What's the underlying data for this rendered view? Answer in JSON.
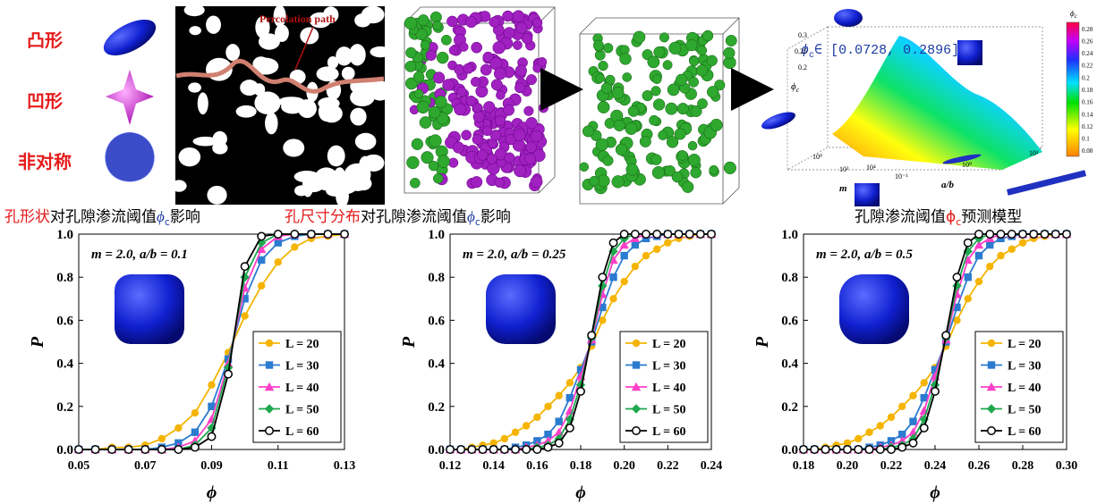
{
  "figure": {
    "shape_labels": [
      "凸形",
      "凹形",
      "非对称"
    ],
    "percolation_label": "Percolation path",
    "caption_left": [
      "孔形状",
      "对孔隙渗流阈值",
      "ϕ",
      "c",
      "影响"
    ],
    "caption_mid": [
      "孔尺寸分布",
      "对孔隙渗流阈值",
      "ϕ",
      "c",
      "影响"
    ],
    "caption_right": [
      "孔隙渗流阈值",
      "ϕ",
      "c",
      "预测模型"
    ],
    "model": {
      "interval": [
        "ϕ",
        "c",
        "∈ [0.0728, 0.2896]"
      ],
      "z_label": "ϕ",
      "z_label_sub": "c",
      "m_label": "m",
      "ab_label": "a/b",
      "zlim": [
        0,
        0.3
      ],
      "zticks": [
        0.2,
        0.25,
        0.3
      ],
      "m_ticks": [
        "10⁰",
        "10²",
        "10⁴"
      ],
      "ab_ticks": [
        "10⁻¹",
        "10⁰",
        "10¹"
      ],
      "colorbar_title": "ϕ",
      "colorbar_title_sub": "c",
      "clim": [
        0.07,
        0.29
      ],
      "cticks": [
        0.08,
        0.1,
        0.12,
        0.14,
        0.16,
        0.18,
        0.2,
        0.22,
        0.24,
        0.26,
        0.28
      ]
    }
  },
  "chart_data": [
    {
      "type": "line",
      "annotation": "m = 2.0, a/b = 0.1",
      "x_label": "ϕ",
      "y_label": "P",
      "legend": "lower right",
      "x": [
        0.05,
        0.055,
        0.06,
        0.065,
        0.07,
        0.075,
        0.08,
        0.085,
        0.09,
        0.095,
        0.1,
        0.105,
        0.11,
        0.115,
        0.12,
        0.125,
        0.13
      ],
      "xlim": [
        0.05,
        0.13
      ],
      "xticks": [
        0.05,
        0.07,
        0.09,
        0.11,
        0.13
      ],
      "ylim": [
        0,
        1
      ],
      "yticks": [
        {
          "value": 0,
          "label": "0.0"
        },
        0.2,
        0.4,
        0.6,
        0.8,
        {
          "value": 1,
          "label": "1.0"
        }
      ],
      "series": [
        {
          "name": "L = 20",
          "color": "#f5b400",
          "marker": "circle",
          "values": [
            0,
            0,
            0.01,
            0.01,
            0.02,
            0.05,
            0.1,
            0.17,
            0.3,
            0.45,
            0.62,
            0.76,
            0.87,
            0.94,
            0.98,
            0.99,
            1
          ]
        },
        {
          "name": "L = 30",
          "color": "#2b7bd0",
          "marker": "square",
          "values": [
            0,
            0,
            0,
            0,
            0,
            0.01,
            0.03,
            0.08,
            0.2,
            0.42,
            0.7,
            0.88,
            0.96,
            0.99,
            1,
            1,
            1
          ]
        },
        {
          "name": "L = 40",
          "color": "#ff3fc8",
          "marker": "triangle",
          "values": [
            0,
            0,
            0,
            0,
            0,
            0,
            0.01,
            0.04,
            0.14,
            0.4,
            0.75,
            0.93,
            0.99,
            1,
            1,
            1,
            1
          ]
        },
        {
          "name": "L = 50",
          "color": "#1fa84f",
          "marker": "diamond",
          "values": [
            0,
            0,
            0,
            0,
            0,
            0,
            0,
            0.02,
            0.1,
            0.38,
            0.8,
            0.96,
            1,
            1,
            1,
            1,
            1
          ]
        },
        {
          "name": "L = 60",
          "color": "#000000",
          "marker": "circle-open",
          "values": [
            0,
            0,
            0,
            0,
            0,
            0,
            0,
            0.01,
            0.06,
            0.35,
            0.85,
            0.99,
            1,
            1,
            1,
            1,
            1
          ]
        }
      ]
    },
    {
      "type": "line",
      "annotation": "m = 2.0, a/b = 0.25",
      "x_label": "ϕ",
      "y_label": "P",
      "legend": "lower right",
      "x": [
        0.12,
        0.125,
        0.13,
        0.135,
        0.14,
        0.145,
        0.15,
        0.155,
        0.16,
        0.165,
        0.17,
        0.175,
        0.18,
        0.185,
        0.19,
        0.195,
        0.2,
        0.205,
        0.21,
        0.215,
        0.22,
        0.225,
        0.23,
        0.235,
        0.24
      ],
      "xlim": [
        0.12,
        0.24
      ],
      "xticks": [
        0.12,
        0.14,
        0.16,
        0.18,
        {
          "value": 0.2,
          "label": "0.20"
        },
        0.22,
        0.24
      ],
      "ylim": [
        0,
        1
      ],
      "yticks": [
        {
          "value": 0,
          "label": "0.0"
        },
        0.2,
        0.4,
        0.6,
        0.8,
        {
          "value": 1,
          "label": "1.0"
        }
      ],
      "series": [
        {
          "name": "L = 20",
          "color": "#f5b400",
          "marker": "circle",
          "values": [
            0,
            0,
            0.01,
            0.02,
            0.03,
            0.05,
            0.08,
            0.11,
            0.15,
            0.2,
            0.25,
            0.31,
            0.38,
            0.48,
            0.6,
            0.7,
            0.78,
            0.85,
            0.9,
            0.93,
            0.96,
            0.98,
            0.99,
            1,
            1
          ]
        },
        {
          "name": "L = 30",
          "color": "#2b7bd0",
          "marker": "square",
          "values": [
            0,
            0,
            0,
            0,
            0,
            0,
            0.01,
            0.02,
            0.04,
            0.07,
            0.13,
            0.24,
            0.37,
            0.5,
            0.66,
            0.8,
            0.9,
            0.95,
            0.98,
            0.99,
            1,
            1,
            1,
            1,
            1
          ]
        },
        {
          "name": "L = 40",
          "color": "#ff3fc8",
          "marker": "triangle",
          "values": [
            0,
            0,
            0,
            0,
            0,
            0,
            0,
            0.01,
            0.02,
            0.04,
            0.08,
            0.18,
            0.34,
            0.51,
            0.72,
            0.88,
            0.95,
            0.98,
            1,
            1,
            1,
            1,
            1,
            1,
            1
          ]
        },
        {
          "name": "L = 50",
          "color": "#1fa84f",
          "marker": "diamond",
          "values": [
            0,
            0,
            0,
            0,
            0,
            0,
            0,
            0,
            0.01,
            0.02,
            0.05,
            0.14,
            0.3,
            0.52,
            0.76,
            0.92,
            0.98,
            1,
            1,
            1,
            1,
            1,
            1,
            1,
            1
          ]
        },
        {
          "name": "L = 60",
          "color": "#000000",
          "marker": "circle-open",
          "values": [
            0,
            0,
            0,
            0,
            0,
            0,
            0,
            0,
            0,
            0.01,
            0.03,
            0.1,
            0.27,
            0.53,
            0.8,
            0.96,
            1,
            1,
            1,
            1,
            1,
            1,
            1,
            1,
            1
          ]
        }
      ]
    },
    {
      "type": "line",
      "annotation": "m = 2.0, a/b = 0.5",
      "x_label": "ϕ",
      "y_label": "P",
      "legend": "lower right",
      "x": [
        0.18,
        0.185,
        0.19,
        0.195,
        0.2,
        0.205,
        0.21,
        0.215,
        0.22,
        0.225,
        0.23,
        0.235,
        0.24,
        0.245,
        0.25,
        0.255,
        0.26,
        0.265,
        0.27,
        0.275,
        0.28,
        0.285,
        0.29,
        0.295,
        0.3
      ],
      "xlim": [
        0.18,
        0.3
      ],
      "xticks": [
        0.18,
        {
          "value": 0.2,
          "label": "0.20"
        },
        0.22,
        0.24,
        0.26,
        0.28,
        {
          "value": 0.3,
          "label": "0.30"
        }
      ],
      "ylim": [
        0,
        1
      ],
      "yticks": [
        {
          "value": 0,
          "label": "0.0"
        },
        0.2,
        0.4,
        0.6,
        0.8,
        {
          "value": 1,
          "label": "1.0"
        }
      ],
      "series": [
        {
          "name": "L = 20",
          "color": "#f5b400",
          "marker": "circle",
          "values": [
            0,
            0,
            0.01,
            0.02,
            0.03,
            0.05,
            0.08,
            0.11,
            0.15,
            0.2,
            0.25,
            0.31,
            0.38,
            0.48,
            0.6,
            0.7,
            0.78,
            0.85,
            0.9,
            0.93,
            0.96,
            0.98,
            0.99,
            1,
            1
          ]
        },
        {
          "name": "L = 30",
          "color": "#2b7bd0",
          "marker": "square",
          "values": [
            0,
            0,
            0,
            0,
            0,
            0,
            0.01,
            0.02,
            0.04,
            0.07,
            0.13,
            0.24,
            0.37,
            0.5,
            0.66,
            0.8,
            0.9,
            0.95,
            0.98,
            0.99,
            1,
            1,
            1,
            1,
            1
          ]
        },
        {
          "name": "L = 40",
          "color": "#ff3fc8",
          "marker": "triangle",
          "values": [
            0,
            0,
            0,
            0,
            0,
            0,
            0,
            0.01,
            0.02,
            0.04,
            0.08,
            0.18,
            0.34,
            0.51,
            0.72,
            0.88,
            0.95,
            0.98,
            1,
            1,
            1,
            1,
            1,
            1,
            1
          ]
        },
        {
          "name": "L = 50",
          "color": "#1fa84f",
          "marker": "diamond",
          "values": [
            0,
            0,
            0,
            0,
            0,
            0,
            0,
            0,
            0.01,
            0.02,
            0.05,
            0.14,
            0.3,
            0.52,
            0.76,
            0.92,
            0.98,
            1,
            1,
            1,
            1,
            1,
            1,
            1,
            1
          ]
        },
        {
          "name": "L = 60",
          "color": "#000000",
          "marker": "circle-open",
          "values": [
            0,
            0,
            0,
            0,
            0,
            0,
            0,
            0,
            0,
            0.01,
            0.03,
            0.1,
            0.27,
            0.53,
            0.8,
            0.96,
            1,
            1,
            1,
            1,
            1,
            1,
            1,
            1,
            1
          ]
        }
      ]
    }
  ]
}
